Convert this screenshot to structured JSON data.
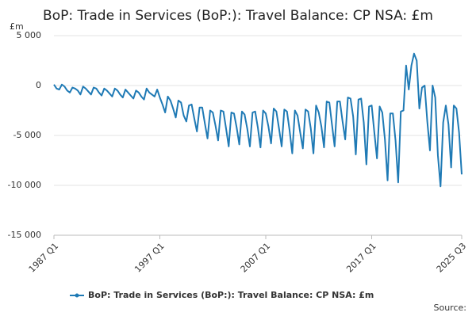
{
  "chart_data": {
    "type": "line",
    "title": "BoP: Trade in Services (BoP:): Travel Balance: CP NSA: £m",
    "y_label": "£m",
    "source": "Source:",
    "categories": [
      "1987 Q1",
      null,
      null,
      null,
      null,
      null,
      null,
      null,
      null,
      null,
      null,
      null,
      null,
      null,
      null,
      null,
      null,
      null,
      null,
      null,
      null,
      null,
      null,
      null,
      null,
      null,
      null,
      null,
      null,
      null,
      null,
      null,
      null,
      null,
      null,
      null,
      null,
      null,
      null,
      null,
      "1997 Q1",
      null,
      null,
      null,
      null,
      null,
      null,
      null,
      null,
      null,
      null,
      null,
      null,
      null,
      null,
      null,
      null,
      null,
      null,
      null,
      null,
      null,
      null,
      null,
      null,
      null,
      null,
      null,
      null,
      null,
      null,
      null,
      null,
      null,
      null,
      null,
      null,
      null,
      null,
      null,
      "2007 Q1",
      null,
      null,
      null,
      null,
      null,
      null,
      null,
      null,
      null,
      null,
      null,
      null,
      null,
      null,
      null,
      null,
      null,
      null,
      null,
      null,
      null,
      null,
      null,
      null,
      null,
      null,
      null,
      null,
      null,
      null,
      null,
      null,
      null,
      null,
      null,
      null,
      null,
      null,
      null,
      "2017 Q1",
      null,
      null,
      null,
      null,
      null,
      null,
      null,
      null,
      null,
      null,
      null,
      null,
      null,
      null,
      null,
      null,
      null,
      null,
      null,
      null,
      null,
      null,
      null,
      null,
      null,
      null,
      null,
      null,
      null,
      null,
      null,
      null,
      null,
      "2025 Q3"
    ],
    "series": [
      {
        "name": "BoP: Trade in Services (BoP:): Travel Balance: CP NSA: £m",
        "color": "#1f7ab5",
        "values": [
          100,
          -300,
          -400,
          100,
          -100,
          -500,
          -700,
          -200,
          -300,
          -500,
          -900,
          -100,
          -300,
          -600,
          -900,
          -200,
          -300,
          -700,
          -1000,
          -300,
          -500,
          -800,
          -1100,
          -300,
          -500,
          -900,
          -1200,
          -400,
          -700,
          -1000,
          -1300,
          -500,
          -700,
          -1100,
          -1400,
          -300,
          -700,
          -900,
          -1100,
          -400,
          -1200,
          -1900,
          -2700,
          -1100,
          -1500,
          -2300,
          -3200,
          -1500,
          -1700,
          -3000,
          -3600,
          -2000,
          -1900,
          -3300,
          -4600,
          -2200,
          -2200,
          -3800,
          -5300,
          -2500,
          -2700,
          -4000,
          -5500,
          -2500,
          -2600,
          -4300,
          -6100,
          -2700,
          -2800,
          -4200,
          -5900,
          -2600,
          -2900,
          -4300,
          -6100,
          -2700,
          -2600,
          -4200,
          -6200,
          -2500,
          -2800,
          -4100,
          -5800,
          -2300,
          -2600,
          -4300,
          -6100,
          -2400,
          -2600,
          -4500,
          -6800,
          -2500,
          -3000,
          -4700,
          -6300,
          -2400,
          -2600,
          -4300,
          -6800,
          -2000,
          -2700,
          -4100,
          -6200,
          -1600,
          -1700,
          -3900,
          -6100,
          -1600,
          -1600,
          -3600,
          -5400,
          -1200,
          -1300,
          -3100,
          -6900,
          -1400,
          -1300,
          -3700,
          -7900,
          -2100,
          -2000,
          -4700,
          -7300,
          -2100,
          -2700,
          -5400,
          -9500,
          -2800,
          -2800,
          -5500,
          -9700,
          -2600,
          -2500,
          2000,
          -400,
          2000,
          3200,
          2500,
          -2300,
          -200,
          0,
          -3600,
          -6500,
          0,
          -1200,
          -7000,
          -10100,
          -3700,
          -2000,
          -3900,
          -8200,
          -2000,
          -2300,
          -4700,
          -8900
        ]
      }
    ],
    "ylim": [
      -15000,
      5000
    ],
    "yticks": [
      {
        "value": 5000,
        "label": "5 000"
      },
      0,
      {
        "value": -5000,
        "label": "-5 000"
      },
      {
        "value": -10000,
        "label": "-10 000"
      },
      {
        "value": -15000,
        "label": "-15 000"
      }
    ],
    "grid": true,
    "legend": "bottom"
  }
}
